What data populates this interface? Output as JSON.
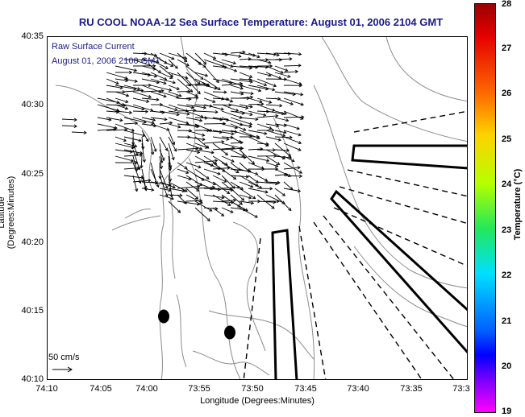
{
  "title": "RU COOL  NOAA-12  Sea Surface Temperature:  August 01, 2006 2104 GMT",
  "annotations": {
    "raw_current": "Raw Surface Current",
    "date_stamp": "August 01, 2006 2100 GMT"
  },
  "axes": {
    "xlabel": "Longitude (Degrees:Minutes)",
    "ylabel": "Latitude (Degrees:Minutes)",
    "x_ticks": [
      "74:10",
      "74:05",
      "74:00",
      "73:55",
      "73:50",
      "73:45",
      "73:40",
      "73:35",
      "73:3"
    ],
    "y_ticks": [
      "40:35",
      "40:30",
      "40:25",
      "40:20",
      "40:15",
      "40:10"
    ]
  },
  "scale_vector": {
    "label": "50 cm/s"
  },
  "colorbar": {
    "label": "Temperature (°C)",
    "ticks": [
      "28",
      "27",
      "26",
      "25",
      "24",
      "23",
      "22",
      "21",
      "20",
      "19"
    ],
    "range": [
      19,
      28
    ]
  },
  "colors": {
    "title": "#1b1b8c",
    "annotation": "#1b1b8c",
    "bathymetry": "#8c8c8c",
    "vectors": "#000000"
  },
  "features": {
    "buoys": [
      "buoy-1",
      "buoy-2"
    ],
    "vector_field": "surface-current-vectors",
    "zones": [
      "zone-north",
      "zone-west",
      "zone-central",
      "zone-east"
    ]
  }
}
